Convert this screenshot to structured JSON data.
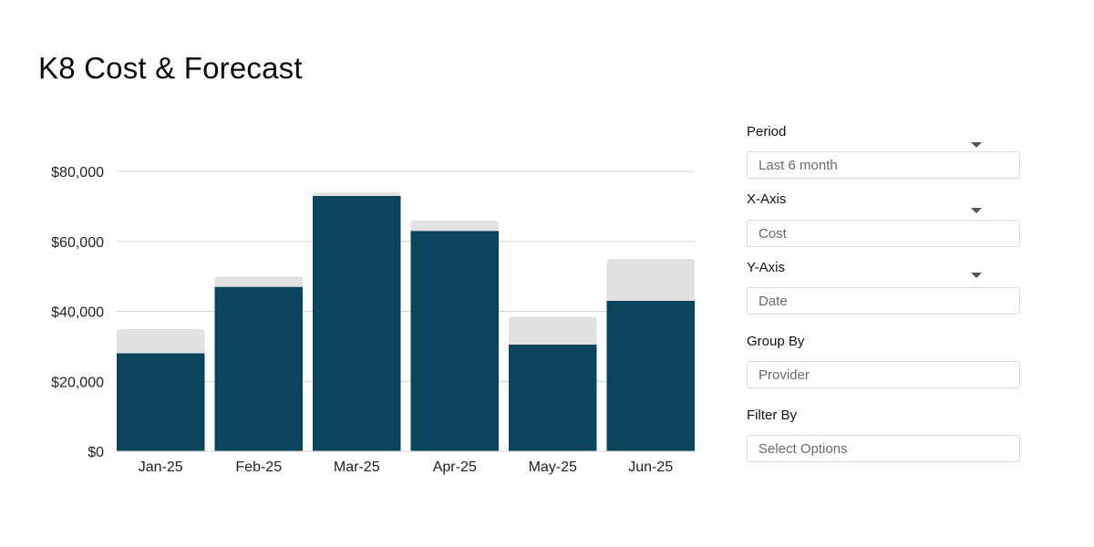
{
  "page": {
    "title": "K8 Cost & Forecast"
  },
  "controls": {
    "period": {
      "label": "Period",
      "placeholder": "Last 6 month",
      "icon": "caret-down-icon"
    },
    "x_axis": {
      "label": "X-Axis",
      "placeholder": "Cost",
      "icon": "caret-down-icon"
    },
    "y_axis": {
      "label": "Y-Axis",
      "placeholder": "Date",
      "icon": "caret-down-icon"
    },
    "group_by": {
      "label": "Group By",
      "placeholder": "Provider"
    },
    "filter_by": {
      "label": "Filter By",
      "placeholder": "Select Options"
    }
  },
  "chart_data": {
    "type": "bar",
    "stacked": true,
    "categories": [
      "Jan-25",
      "Feb-25",
      "Mar-25",
      "Apr-25",
      "May-25",
      "Jun-25"
    ],
    "series": [
      {
        "values": [
          28000,
          47000,
          73000,
          63000,
          30500,
          43000
        ],
        "color": "#0c445c"
      },
      {
        "values": [
          7000,
          3000,
          1000,
          3000,
          8000,
          12000
        ],
        "color": "#e2e2e2"
      }
    ],
    "y_ticks": [
      0,
      20000,
      40000,
      60000,
      80000
    ],
    "y_tick_labels": [
      "$0",
      "$20,000",
      "$40,000",
      "$60,000",
      "$80,000"
    ],
    "ylim": [
      0,
      80000
    ],
    "grid": true,
    "legend": "none",
    "colors": {
      "gridline": "#d4d4d4",
      "axis": "#d4d4d4"
    }
  }
}
